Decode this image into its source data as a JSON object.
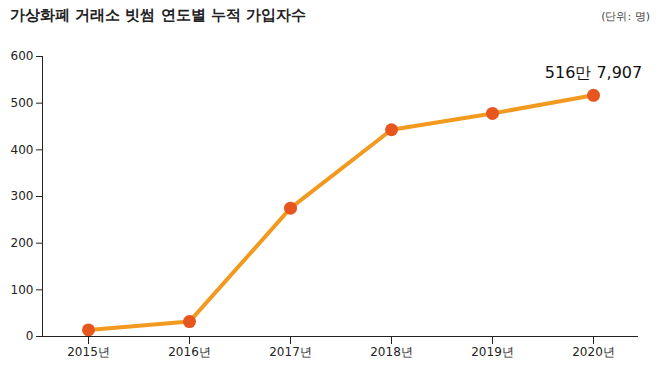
{
  "chart_data": {
    "type": "line",
    "title": "가상화폐 거래소 빗썸 연도별 누적 가입자수",
    "subtitle": "(단위: 명)",
    "categories": [
      "2015년",
      "2016년",
      "2017년",
      "2018년",
      "2019년",
      "2020년"
    ],
    "values": [
      14,
      32,
      275,
      443,
      478,
      516.7907
    ],
    "color": "#f29a1f",
    "marker": "circle",
    "ylim": [
      0,
      600
    ],
    "yticks": [
      0,
      100,
      200,
      300,
      400,
      500,
      600
    ],
    "grid": false,
    "annotations": [
      {
        "text": "516만 7,907",
        "x": "2020년"
      }
    ]
  }
}
